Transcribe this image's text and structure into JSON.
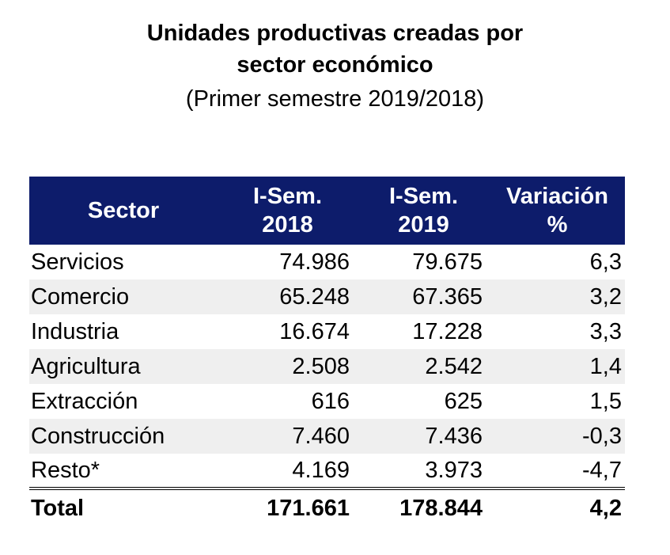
{
  "chart_data": {
    "type": "table",
    "title": "Unidades productivas creadas por sector económico",
    "subtitle": "(Primer semestre 2019/2018)",
    "columns": {
      "sector": "Sector",
      "sem2018": [
        "I-Sem.",
        "2018"
      ],
      "sem2019": [
        "I-Sem.",
        "2019"
      ],
      "variacion": [
        "Variación",
        "%"
      ]
    },
    "rows": [
      {
        "sector": "Servicios",
        "sem2018": "74.986",
        "sem2019": "79.675",
        "variacion": "6,3"
      },
      {
        "sector": "Comercio",
        "sem2018": "65.248",
        "sem2019": "67.365",
        "variacion": "3,2"
      },
      {
        "sector": "Industria",
        "sem2018": "16.674",
        "sem2019": "17.228",
        "variacion": "3,3"
      },
      {
        "sector": "Agricultura",
        "sem2018": "2.508",
        "sem2019": "2.542",
        "variacion": "1,4"
      },
      {
        "sector": "Extracción",
        "sem2018": "616",
        "sem2019": "625",
        "variacion": "1,5"
      },
      {
        "sector": "Construcción",
        "sem2018": "7.460",
        "sem2019": "7.436",
        "variacion": "-0,3"
      },
      {
        "sector": "Resto*",
        "sem2018": "4.169",
        "sem2019": "3.973",
        "variacion": "-4,7"
      }
    ],
    "total": {
      "sector": "Total",
      "sem2018": "171.661",
      "sem2019": "178.844",
      "variacion": "4,2"
    }
  },
  "colors": {
    "header_background": "#0d1c6b",
    "header_text": "#ffffff",
    "alt_row": "#efefef"
  }
}
